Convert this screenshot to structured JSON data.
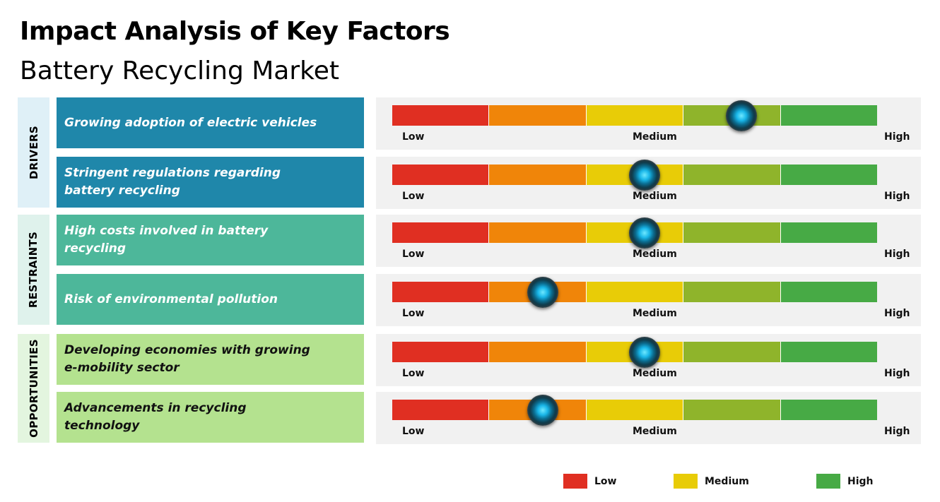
{
  "title": "Impact Analysis of Key Factors",
  "subtitle": "Battery Recycling Market",
  "categories": [
    {
      "label": "DRIVERS",
      "color": "#dff0f7"
    },
    {
      "label": "RESTRAINTS",
      "color": "#dff2ec"
    },
    {
      "label": "OPPORTUNITIES",
      "color": "#e3f5df"
    }
  ],
  "scale_labels": {
    "low": "Low",
    "medium": "Medium",
    "high": "High"
  },
  "segment_colors": [
    "#e02f22",
    "#f08509",
    "#e8cc07",
    "#8fb42b",
    "#47aa45"
  ],
  "factors": [
    {
      "text": "Growing adoption of electric vehicles",
      "category": "DRIVERS",
      "impact": 0.72,
      "box_color": "#1f87aa",
      "text_color": "#ffffff"
    },
    {
      "text": "Stringent regulations regarding battery recycling",
      "category": "DRIVERS",
      "impact": 0.52,
      "box_color": "#1f87aa",
      "text_color": "#ffffff"
    },
    {
      "text": "High costs involved in battery recycling",
      "category": "RESTRAINTS",
      "impact": 0.52,
      "box_color": "#4db79a",
      "text_color": "#ffffff"
    },
    {
      "text": "Risk of environmental pollution",
      "category": "RESTRAINTS",
      "impact": 0.31,
      "box_color": "#4db79a",
      "text_color": "#ffffff"
    },
    {
      "text": "Developing economies with growing e-mobility sector",
      "category": "OPPORTUNITIES",
      "impact": 0.52,
      "box_color": "#b4e28f",
      "text_color": "#111111"
    },
    {
      "text": "Advancements in recycling technology",
      "category": "OPPORTUNITIES",
      "impact": 0.31,
      "box_color": "#b4e28f",
      "text_color": "#111111"
    }
  ],
  "legend": [
    {
      "label": "Low",
      "color": "#e02f22"
    },
    {
      "label": "Medium",
      "color": "#e8cc07"
    },
    {
      "label": "High",
      "color": "#47aa45"
    }
  ]
}
